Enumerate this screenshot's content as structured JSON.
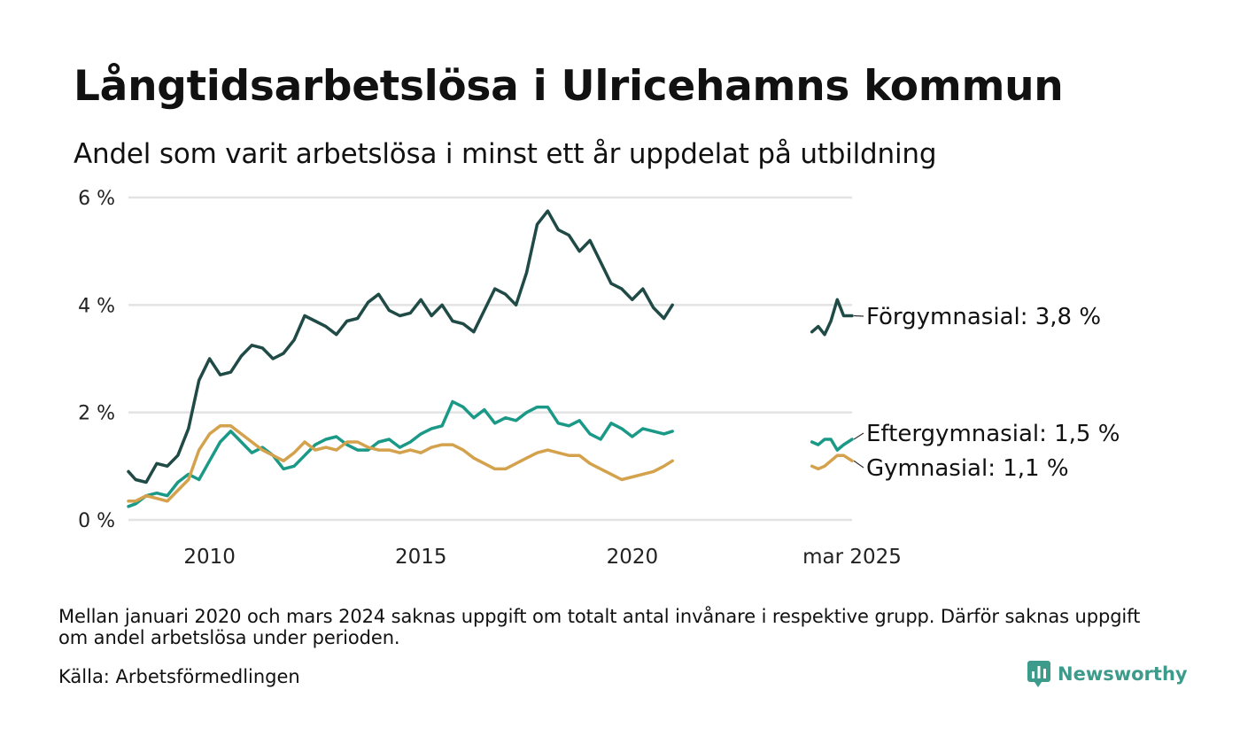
{
  "title": "Långtidsarbetslösa i Ulricehamns kommun",
  "subtitle": "Andel som varit arbetslösa i minst ett år uppdelat på utbildning",
  "footnote": "Mellan januari 2020 och mars 2024 saknas uppgift om totalt antal invånare i respektive grupp. Därför saknas uppgift om andel arbetslösa under perioden.",
  "source": "Källa: Arbetsförmedlingen",
  "brand": {
    "name": "Newsworthy",
    "icon": "bar-chart-speech-bubble-icon",
    "color": "#3d9b8c"
  },
  "chart_data": {
    "type": "line",
    "x_unit": "year",
    "ylim": [
      0,
      6
    ],
    "y_ticks": [
      0,
      2,
      4,
      6
    ],
    "y_tick_labels": [
      "0 %",
      "2 %",
      "4 %",
      "6 %"
    ],
    "x_ticks": [
      2010,
      2015,
      2020,
      2025.2
    ],
    "x_tick_labels": [
      "2010",
      "2015",
      "2020",
      "mar 2025"
    ],
    "grid": "horizontal",
    "legend": "direct-labels-right",
    "series": [
      {
        "label": "Förgymnasial: 3,8 %",
        "color": "#1f4a46",
        "segments": [
          {
            "x": [
              2008.08,
              2008.25,
              2008.5,
              2008.75,
              2009.0,
              2009.25,
              2009.5,
              2009.75,
              2010.0,
              2010.25,
              2010.5,
              2010.75,
              2011.0,
              2011.25,
              2011.5,
              2011.75,
              2012.0,
              2012.25,
              2012.5,
              2012.75,
              2013.0,
              2013.25,
              2013.5,
              2013.75,
              2014.0,
              2014.25,
              2014.5,
              2014.75,
              2015.0,
              2015.25,
              2015.5,
              2015.75,
              2016.0,
              2016.25,
              2016.5,
              2016.75,
              2017.0,
              2017.25,
              2017.5,
              2017.75,
              2018.0,
              2018.25,
              2018.5,
              2018.75,
              2019.0,
              2019.25,
              2019.5,
              2019.75,
              2020.0,
              2020.25,
              2020.5,
              2020.75,
              2020.95
            ],
            "y": [
              0.9,
              0.75,
              0.7,
              1.05,
              1.0,
              1.2,
              1.7,
              2.6,
              3.0,
              2.7,
              2.75,
              3.05,
              3.25,
              3.2,
              3.0,
              3.1,
              3.35,
              3.8,
              3.7,
              3.6,
              3.45,
              3.7,
              3.75,
              4.05,
              4.2,
              3.9,
              3.8,
              3.85,
              4.1,
              3.8,
              4.0,
              3.7,
              3.65,
              3.5,
              3.9,
              4.3,
              4.2,
              4.0,
              4.6,
              5.5,
              5.75,
              5.4,
              5.3,
              5.0,
              5.2,
              4.8,
              4.4,
              4.3,
              4.1,
              4.3,
              3.95,
              3.75,
              4.0
            ]
          },
          {
            "x": [
              2024.25,
              2024.4,
              2024.55,
              2024.7,
              2024.85,
              2025.0,
              2025.2
            ],
            "y": [
              3.5,
              3.6,
              3.45,
              3.7,
              4.1,
              3.8,
              3.8
            ]
          }
        ]
      },
      {
        "label": "Eftergymnasial: 1,5 %",
        "color": "#1a9987",
        "segments": [
          {
            "x": [
              2008.08,
              2008.25,
              2008.5,
              2008.75,
              2009.0,
              2009.25,
              2009.5,
              2009.75,
              2010.0,
              2010.25,
              2010.5,
              2010.75,
              2011.0,
              2011.25,
              2011.5,
              2011.75,
              2012.0,
              2012.25,
              2012.5,
              2012.75,
              2013.0,
              2013.25,
              2013.5,
              2013.75,
              2014.0,
              2014.25,
              2014.5,
              2014.75,
              2015.0,
              2015.25,
              2015.5,
              2015.75,
              2016.0,
              2016.25,
              2016.5,
              2016.75,
              2017.0,
              2017.25,
              2017.5,
              2017.75,
              2018.0,
              2018.25,
              2018.5,
              2018.75,
              2019.0,
              2019.25,
              2019.5,
              2019.75,
              2020.0,
              2020.25,
              2020.5,
              2020.75,
              2020.95
            ],
            "y": [
              0.25,
              0.3,
              0.45,
              0.5,
              0.45,
              0.7,
              0.85,
              0.75,
              1.1,
              1.45,
              1.65,
              1.45,
              1.25,
              1.35,
              1.2,
              0.95,
              1.0,
              1.2,
              1.4,
              1.5,
              1.55,
              1.4,
              1.3,
              1.3,
              1.45,
              1.5,
              1.35,
              1.45,
              1.6,
              1.7,
              1.75,
              2.2,
              2.1,
              1.9,
              2.05,
              1.8,
              1.9,
              1.85,
              2.0,
              2.1,
              2.1,
              1.8,
              1.75,
              1.85,
              1.6,
              1.5,
              1.8,
              1.7,
              1.55,
              1.7,
              1.65,
              1.6,
              1.65
            ]
          },
          {
            "x": [
              2024.25,
              2024.4,
              2024.55,
              2024.7,
              2024.85,
              2025.0,
              2025.2
            ],
            "y": [
              1.45,
              1.4,
              1.5,
              1.5,
              1.3,
              1.4,
              1.5
            ]
          }
        ]
      },
      {
        "label": "Gymnasial: 1,1 %",
        "color": "#d4a24c",
        "segments": [
          {
            "x": [
              2008.08,
              2008.25,
              2008.5,
              2008.75,
              2009.0,
              2009.25,
              2009.5,
              2009.75,
              2010.0,
              2010.25,
              2010.5,
              2010.75,
              2011.0,
              2011.25,
              2011.5,
              2011.75,
              2012.0,
              2012.25,
              2012.5,
              2012.75,
              2013.0,
              2013.25,
              2013.5,
              2013.75,
              2014.0,
              2014.25,
              2014.5,
              2014.75,
              2015.0,
              2015.25,
              2015.5,
              2015.75,
              2016.0,
              2016.25,
              2016.5,
              2016.75,
              2017.0,
              2017.25,
              2017.5,
              2017.75,
              2018.0,
              2018.25,
              2018.5,
              2018.75,
              2019.0,
              2019.25,
              2019.5,
              2019.75,
              2020.0,
              2020.25,
              2020.5,
              2020.75,
              2020.95
            ],
            "y": [
              0.35,
              0.35,
              0.45,
              0.4,
              0.35,
              0.55,
              0.75,
              1.3,
              1.6,
              1.75,
              1.75,
              1.6,
              1.45,
              1.3,
              1.2,
              1.1,
              1.25,
              1.45,
              1.3,
              1.35,
              1.3,
              1.45,
              1.45,
              1.35,
              1.3,
              1.3,
              1.25,
              1.3,
              1.25,
              1.35,
              1.4,
              1.4,
              1.3,
              1.15,
              1.05,
              0.95,
              0.95,
              1.05,
              1.15,
              1.25,
              1.3,
              1.25,
              1.2,
              1.2,
              1.05,
              0.95,
              0.85,
              0.75,
              0.8,
              0.85,
              0.9,
              1.0,
              1.1
            ]
          },
          {
            "x": [
              2024.25,
              2024.4,
              2024.55,
              2024.7,
              2024.85,
              2025.0,
              2025.2
            ],
            "y": [
              1.0,
              0.95,
              1.0,
              1.1,
              1.2,
              1.2,
              1.1
            ]
          }
        ]
      }
    ]
  }
}
